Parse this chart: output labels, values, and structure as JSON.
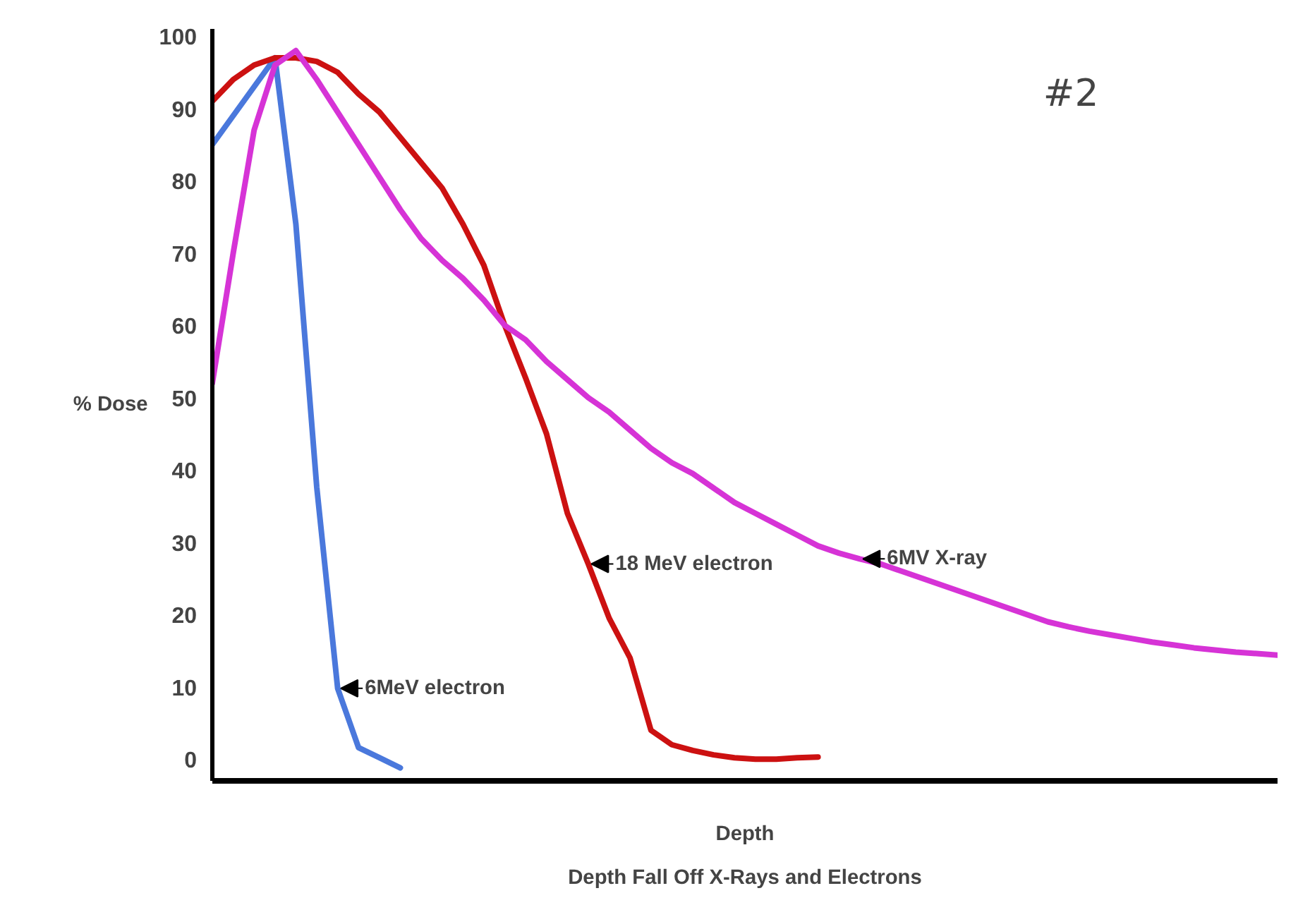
{
  "chart_data": {
    "type": "line",
    "title": "Depth Fall Off X-Rays and Electrons",
    "xlabel": "Depth",
    "ylabel": "% Dose",
    "annotations": [
      "#2"
    ],
    "categories": [
      null,
      null,
      null,
      null,
      null,
      null,
      null,
      null,
      null,
      null,
      null,
      null,
      null,
      null,
      null,
      null,
      null,
      null,
      null,
      null,
      null,
      null,
      null,
      null,
      null,
      null,
      null,
      null,
      null,
      null,
      null,
      null,
      null,
      null,
      null,
      null,
      null,
      null,
      null,
      null,
      null,
      null,
      null,
      null,
      null,
      null,
      null,
      null,
      null,
      null,
      null,
      null
    ],
    "ylim": [
      -3,
      101
    ],
    "yticks": [
      0,
      10,
      20,
      30,
      40,
      50,
      60,
      70,
      80,
      90,
      100
    ],
    "grid": false,
    "marker": "none",
    "line_style": "solid",
    "series": [
      {
        "name": "6MeV electron",
        "color": "#4a78dc",
        "values": [
          85,
          89,
          93,
          97,
          74,
          37.6,
          9.8,
          1.6,
          0.2,
          -1.2,
          null,
          null,
          null,
          null,
          null,
          null,
          null,
          null,
          null,
          null,
          null,
          null,
          null,
          null,
          null,
          null,
          null,
          null,
          null,
          null,
          null,
          null,
          null,
          null,
          null,
          null,
          null,
          null,
          null,
          null,
          null,
          null,
          null,
          null,
          null,
          null,
          null,
          null,
          null,
          null,
          null,
          null
        ]
      },
      {
        "name": "18 MeV electron",
        "color": "#cc1111",
        "values": [
          91,
          94,
          96,
          97,
          97,
          96.5,
          95,
          92,
          89.5,
          86,
          82.5,
          79,
          74,
          68.3,
          60,
          52.7,
          45,
          34,
          27,
          19.5,
          14,
          4,
          2,
          1.2,
          0.6,
          0.2,
          0,
          0,
          0.2,
          0.3,
          null,
          null,
          null,
          null,
          null,
          null,
          null,
          null,
          null,
          null,
          null,
          null,
          null,
          null,
          null,
          null,
          null,
          null,
          null,
          null,
          null,
          null
        ]
      },
      {
        "name": "6MV X-ray",
        "color": "#d633d6",
        "values": [
          52,
          70,
          87,
          96,
          98,
          94,
          89.5,
          85,
          80.5,
          76,
          72,
          69,
          66.5,
          63.5,
          60,
          58,
          55,
          52.5,
          50,
          48,
          45.5,
          43,
          41,
          39.5,
          37.5,
          35.5,
          34,
          32.5,
          31,
          29.5,
          28.5,
          27.7,
          27,
          26,
          25,
          24,
          23,
          22,
          21,
          20,
          19,
          18.3,
          17.7,
          17.2,
          16.7,
          16.2,
          15.8,
          15.4,
          15.1,
          14.8,
          14.6,
          14.4
        ]
      }
    ]
  }
}
